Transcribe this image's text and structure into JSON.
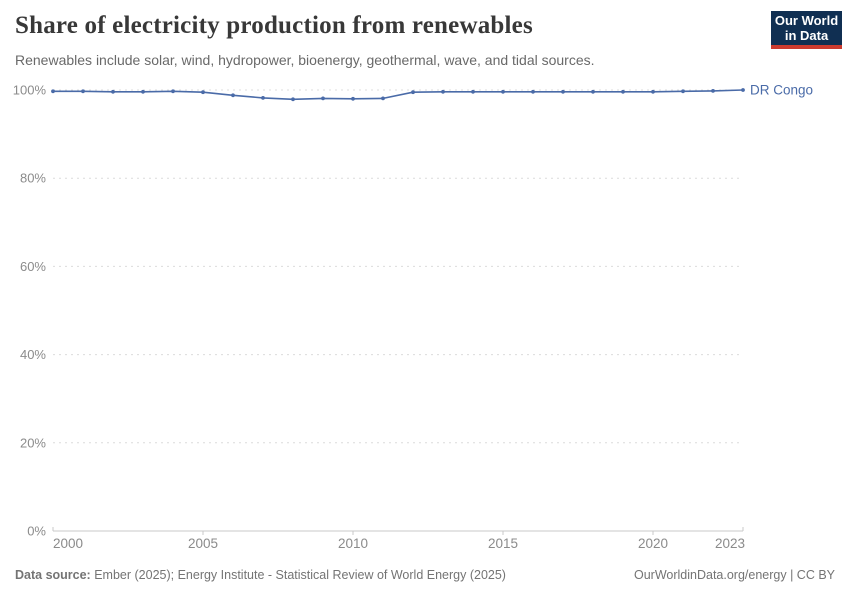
{
  "header": {
    "title": "Share of electricity production from renewables",
    "subtitle": "Renewables include solar, wind, hydropower, bioenergy, geothermal, wave, and tidal sources.",
    "logo": {
      "line1": "Our World",
      "line2": "in Data",
      "bg_color": "#102f52",
      "accent_color": "#cc3b2f"
    }
  },
  "chart_data": {
    "type": "line",
    "title": "Share of electricity production from renewables",
    "xlabel": "",
    "ylabel": "",
    "xlim": [
      2000,
      2023
    ],
    "ylim": [
      0,
      100
    ],
    "x_ticks": [
      2000,
      2005,
      2010,
      2015,
      2020,
      2023
    ],
    "y_ticks": [
      0,
      20,
      40,
      60,
      80,
      100
    ],
    "y_tick_suffix": "%",
    "grid": "horizontal-dashed",
    "legend_position": "end-of-line-label",
    "series": [
      {
        "name": "DR Congo",
        "color": "#4a6ba8",
        "x": [
          2000,
          2001,
          2002,
          2003,
          2004,
          2005,
          2006,
          2007,
          2008,
          2009,
          2010,
          2011,
          2012,
          2013,
          2014,
          2015,
          2016,
          2017,
          2018,
          2019,
          2020,
          2021,
          2022,
          2023
        ],
        "values": [
          99.7,
          99.7,
          99.6,
          99.6,
          99.7,
          99.5,
          98.8,
          98.2,
          97.9,
          98.1,
          98.0,
          98.1,
          99.5,
          99.6,
          99.6,
          99.6,
          99.6,
          99.6,
          99.6,
          99.6,
          99.6,
          99.7,
          99.8,
          100.0
        ]
      }
    ],
    "axis_color": "#c8c8c8",
    "grid_color": "#dcdcdc",
    "tick_label_color": "#8b8b8b"
  },
  "footer": {
    "source_label": "Data source:",
    "source_text": " Ember (2025); Energy Institute - Statistical Review of World Energy (2025)",
    "link_text": "OurWorldinData.org/energy | CC BY"
  }
}
